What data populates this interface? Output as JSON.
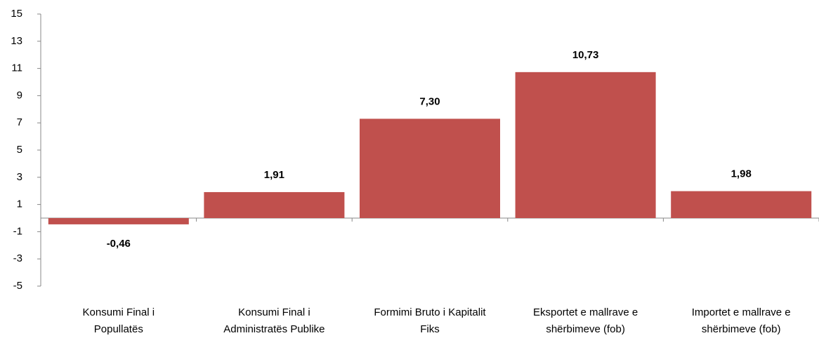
{
  "chart_data": {
    "type": "bar",
    "categories": [
      "Konsumi Final i\nPopullatës",
      "Konsumi Final i\nAdministratës Publike",
      "Formimi Bruto i Kapitalit\nFiks",
      "Eksportet e mallrave e\nshërbimeve (fob)",
      "Importet e mallrave e\nshërbimeve (fob)"
    ],
    "values": [
      -0.46,
      1.91,
      7.3,
      10.73,
      1.98
    ],
    "value_labels": [
      "-0,46",
      "1,91",
      "7,30",
      "10,73",
      "1,98"
    ],
    "color": "#c0504d",
    "ylim": [
      -5,
      15
    ],
    "yticks": [
      -5,
      -3,
      -1,
      1,
      3,
      5,
      7,
      9,
      11,
      13,
      15
    ],
    "grid": false
  }
}
